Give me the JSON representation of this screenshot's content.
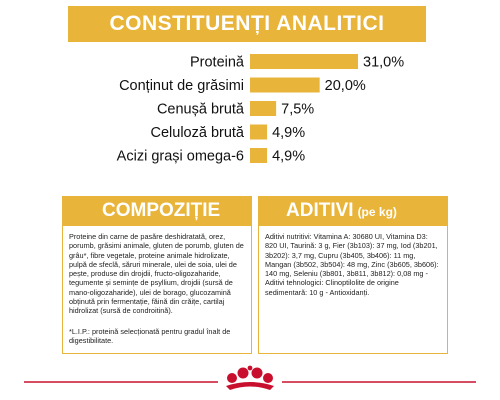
{
  "header": {
    "title": "CONSTITUENȚI ANALITICI"
  },
  "chart_data": {
    "type": "bar",
    "orientation": "horizontal",
    "categories": [
      "Proteină",
      "Conținut de grăsimi",
      "Cenușă brută",
      "Celuloză brută",
      "Acizi grași omega-6"
    ],
    "values": [
      31.0,
      20.0,
      7.5,
      4.9,
      4.9
    ],
    "value_labels": [
      "31,0%",
      "20,0%",
      "7,5%",
      "4,9%",
      "4,9%"
    ],
    "unit": "%",
    "xlim": [
      0,
      31
    ],
    "bar_color": "#e9b43a",
    "grid": false,
    "legend": "none"
  },
  "composition": {
    "title": "COMPOZIȚIE",
    "text": "Proteine din carne de pasăre deshidratată, orez, porumb, grăsimi animale, gluten de porumb, gluten de grâu*, fibre vegetale, proteine animale hidrolizate, pulpă de sfeclă, săruri minerale, ulei de soia, ulei de pește, produse din drojdii, fructo-oligozaharide, tegumente și semințe de psyllium, drojdii (sursă de mano-oligozaharide), ulei de borago, glucozamină obținută prin fermentație, făină din crăițe, cartilaj hidrolizat (sursă de condroitină).",
    "note": "*L.I.P.: proteină selecționată pentru gradul înalt de digestibilitate."
  },
  "additives": {
    "title": "ADITIVI",
    "unit": "(pe kg)",
    "text": "Aditivi nutritivi: Vitamina A: 30680 UI, Vitamina D3: 820 UI, Taurină: 3 g, Fier (3b103): 37 mg, Iod (3b201, 3b202): 3,7 mg, Cupru (3b405, 3b406): 11 mg, Mangan (3b502, 3b504): 48 mg, Zinc (3b605, 3b606): 140 mg, Seleniu (3b801, 3b811, 3b812): 0,08 mg - Aditivi tehnologici: Clinoptilolite de origine sedimentară: 10 g - Antioxidanți."
  },
  "colors": {
    "accent": "#e9b43a",
    "brand_red": "#c8102e"
  },
  "footer": {
    "logo_icon": "royal-canin-crown-icon"
  }
}
